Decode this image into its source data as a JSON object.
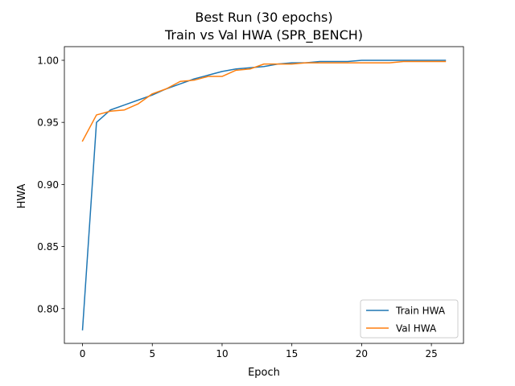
{
  "chart_data": {
    "type": "line",
    "title": "Best Run (30 epochs)",
    "subtitle": "Train vs Val HWA (SPR_BENCH)",
    "xlabel": "Epoch",
    "ylabel": "HWA",
    "xlim": [
      -1.3,
      27.3
    ],
    "ylim": [
      0.772,
      1.011
    ],
    "xticks": [
      0,
      5,
      10,
      15,
      20,
      25
    ],
    "yticks": [
      0.8,
      0.85,
      0.9,
      0.95,
      1.0
    ],
    "xtick_labels": [
      "0",
      "5",
      "10",
      "15",
      "20",
      "25"
    ],
    "ytick_labels": [
      "0.80",
      "0.85",
      "0.90",
      "0.95",
      "1.00"
    ],
    "grid": false,
    "legend_position": "bottom-right",
    "x": [
      0,
      1,
      2,
      3,
      4,
      5,
      6,
      7,
      8,
      9,
      10,
      11,
      12,
      13,
      14,
      15,
      16,
      17,
      18,
      19,
      20,
      21,
      22,
      23,
      24,
      25,
      26
    ],
    "series": [
      {
        "name": "Train HWA",
        "color": "#1f77b4",
        "values": [
          0.783,
          0.95,
          0.96,
          0.964,
          0.968,
          0.972,
          0.977,
          0.981,
          0.985,
          0.988,
          0.991,
          0.993,
          0.994,
          0.995,
          0.997,
          0.998,
          0.998,
          0.999,
          0.999,
          0.999,
          1.0,
          1.0,
          1.0,
          1.0,
          1.0,
          1.0,
          1.0
        ]
      },
      {
        "name": "Val HWA",
        "color": "#ff7f0e",
        "values": [
          0.935,
          0.956,
          0.959,
          0.96,
          0.965,
          0.973,
          0.977,
          0.983,
          0.984,
          0.987,
          0.987,
          0.992,
          0.993,
          0.997,
          0.997,
          0.997,
          0.998,
          0.998,
          0.998,
          0.998,
          0.998,
          0.998,
          0.998,
          0.999,
          0.999,
          0.999,
          0.999
        ]
      }
    ]
  }
}
